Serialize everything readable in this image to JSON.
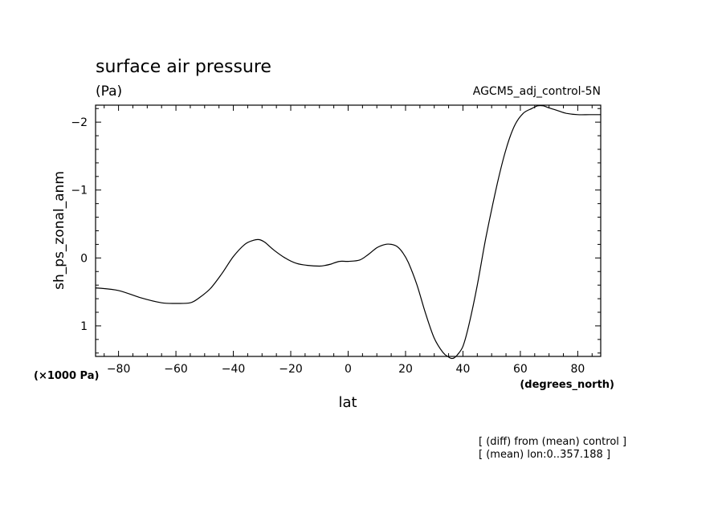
{
  "chart_data": {
    "type": "line",
    "title": "surface air pressure",
    "subtitle": "(Pa)",
    "dataset_label": "AGCM5_adj_control-5N",
    "xlabel": "lat",
    "xunits": "(degrees_north)",
    "ylabel": "sh_ps_zonal_anm",
    "yunits": "(×1000 Pa)",
    "xlim": [
      -88,
      88
    ],
    "ylim": [
      1.45,
      -2.25
    ],
    "y_inverted": true,
    "xticks": [
      -80,
      -60,
      -40,
      -20,
      0,
      20,
      40,
      60,
      80
    ],
    "xtick_labels": [
      "−80",
      "−60",
      "−40",
      "−20",
      "0",
      "20",
      "40",
      "60",
      "80"
    ],
    "yticks": [
      -2,
      -1,
      0,
      1
    ],
    "ytick_labels": [
      "−2",
      "−1",
      "0",
      "1"
    ],
    "notes": [
      "[ (diff) from (mean) control ]",
      "[ (mean) lon:0..357.188 ]"
    ],
    "series": [
      {
        "x": [
          -88,
          -80,
          -72,
          -65,
          -60,
          -55,
          -52,
          -48,
          -44,
          -40,
          -36,
          -33,
          -31,
          -29,
          -26,
          -22,
          -18,
          -14,
          -10,
          -8,
          -6,
          -3,
          0,
          4,
          7,
          10,
          13,
          15,
          17,
          19,
          21,
          24,
          27,
          30,
          33,
          35,
          36,
          37,
          38,
          40,
          42,
          45,
          48,
          52,
          55,
          58,
          61,
          64,
          66,
          68,
          70,
          73,
          76,
          80,
          84,
          88
        ],
        "y": [
          0.44,
          0.48,
          0.59,
          0.66,
          0.67,
          0.66,
          0.59,
          0.45,
          0.23,
          -0.02,
          -0.2,
          -0.26,
          -0.27,
          -0.23,
          -0.12,
          0.0,
          0.08,
          0.11,
          0.12,
          0.11,
          0.09,
          0.05,
          0.05,
          0.03,
          -0.05,
          -0.15,
          -0.2,
          -0.2,
          -0.17,
          -0.08,
          0.07,
          0.4,
          0.82,
          1.18,
          1.39,
          1.46,
          1.48,
          1.47,
          1.43,
          1.3,
          1.0,
          0.4,
          -0.3,
          -1.1,
          -1.6,
          -1.95,
          -2.13,
          -2.2,
          -2.24,
          -2.24,
          -2.21,
          -2.17,
          -2.13,
          -2.11,
          -2.11,
          -2.11
        ]
      }
    ]
  }
}
